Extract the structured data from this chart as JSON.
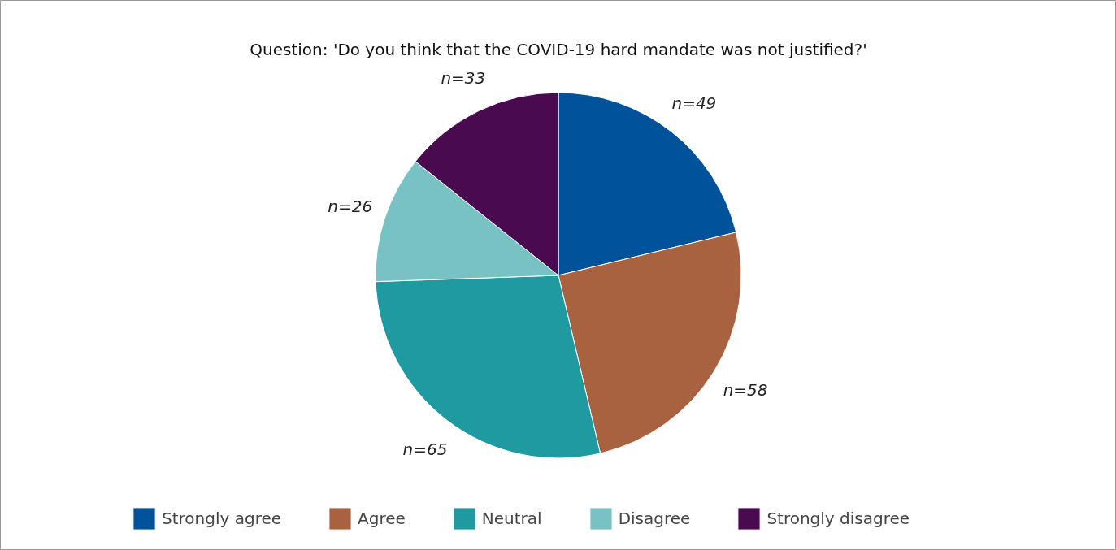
{
  "chart_data": {
    "type": "pie",
    "title": "Question: 'Do you think that the COVID-19 hard mandate was not justified?'",
    "categories": [
      "Strongly agree",
      "Agree",
      "Neutral",
      "Disagree",
      "Strongly disagree"
    ],
    "values": [
      49,
      58,
      65,
      26,
      33
    ],
    "colors": [
      "#00529b",
      "#a86240",
      "#1e9aa0",
      "#79c2c4",
      "#4a0a4f"
    ],
    "value_labels": [
      "n=49",
      "n=58",
      "n=65",
      "n=26",
      "n=33"
    ],
    "legend": "bottom"
  }
}
